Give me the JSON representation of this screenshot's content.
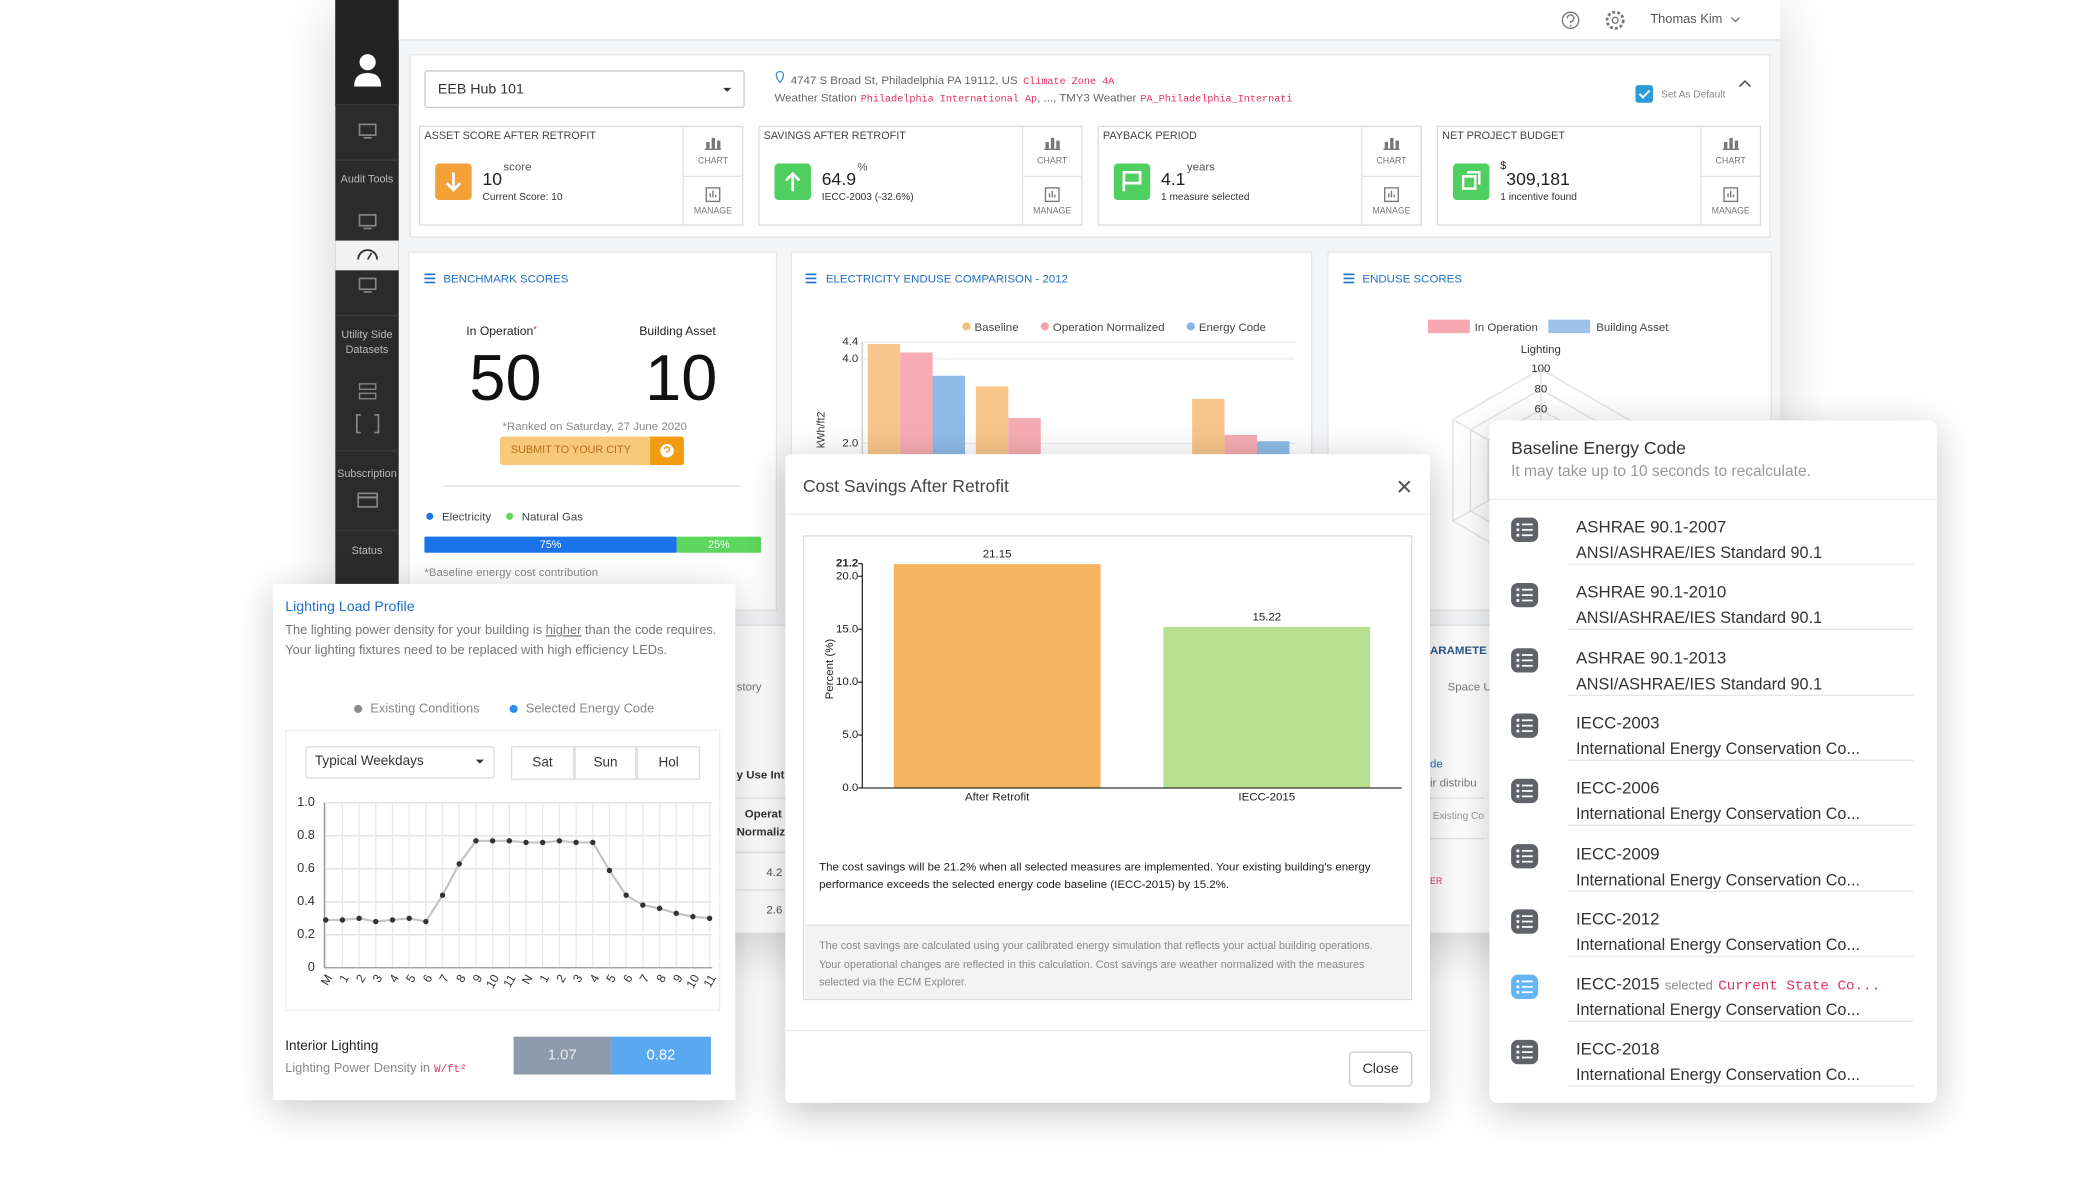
{
  "topbar": {
    "user": "Thomas Kim"
  },
  "sidebar": {
    "items": [
      "Audit Tools",
      "Utility Side Datasets",
      "Subscription",
      "Status"
    ]
  },
  "building": {
    "name": "EEB Hub 101",
    "address": "4747 S Broad St, Philadelphia PA 19112, US",
    "climate_zone": "Climate Zone 4A",
    "weather_station_label": "Weather Station",
    "weather_station": "Philadelphia International Ap",
    "weather_separator": ", ..., TMY3 Weather",
    "tmy3": "PA_Philadelphia_Internati",
    "set_default": "Set As Default"
  },
  "kpi_buttons": {
    "chart": "CHART",
    "manage": "MANAGE"
  },
  "kpis": [
    {
      "title": "ASSET SCORE AFTER RETROFIT",
      "value": 10,
      "unit": "score",
      "detail": "Current Score: 10"
    },
    {
      "title": "SAVINGS AFTER RETROFIT",
      "value": 64.9,
      "unit": "%",
      "detail": "IECC-2003 (-32.6%)"
    },
    {
      "title": "PAYBACK PERIOD",
      "value": 4.1,
      "unit": "years",
      "detail": "1 measure selected"
    },
    {
      "title": "NET PROJECT BUDGET",
      "prefix": "$",
      "value": "309,181",
      "detail": "1 incentive found"
    }
  ],
  "benchmark": {
    "title": "BENCHMARK SCORES",
    "in_operation_label": "In Operation",
    "asterisk": "*",
    "building_asset_label": "Building Asset",
    "in_operation": 50,
    "building_asset": 10,
    "ranked": "*Ranked on Saturday, 27 June 2020",
    "submit": "SUBMIT TO YOUR CITY",
    "fuel_split": {
      "xlim": [
        0,
        100
      ],
      "series": [
        {
          "name": "Electricity",
          "color": "#1a73e8",
          "value": 75,
          "value_label": "75%"
        },
        {
          "name": "Natural Gas",
          "color": "#5cd65c",
          "value": 25,
          "value_label": "25%"
        }
      ]
    },
    "footnote": "*Baseline energy cost contribution"
  },
  "electricity_chart": {
    "type": "bar",
    "title": "ELECTRICITY ENDUSE COMPARISON - 2012",
    "y_label": "kWh/ft2",
    "categories": [
      null,
      null,
      null,
      null
    ],
    "series": [
      {
        "name": "Baseline",
        "color": "#f7c07e",
        "values": [
          4.35,
          3.35,
          null,
          3.05
        ]
      },
      {
        "name": "Operation Normalized",
        "color": "#f5a3aa",
        "values": [
          4.15,
          2.6,
          null,
          2.2
        ]
      },
      {
        "name": "Energy Code",
        "color": "#82b4e6",
        "values": [
          3.6,
          null,
          null,
          2.05
        ]
      }
    ],
    "ylim": [
      0,
      4.4
    ],
    "yticks": [
      4.4,
      {
        "value": 4,
        "label": "4.0"
      },
      {
        "value": 2,
        "label": "2.0"
      }
    ],
    "grid": true
  },
  "enduse_scores": {
    "type": "radar",
    "title": "ENDUSE SCORES",
    "legend": [
      {
        "name": "In Operation",
        "color": "#f7a8b0"
      },
      {
        "name": "Building Asset",
        "color": "#9fc2e8"
      }
    ],
    "axis_label": "Lighting",
    "rlim": [
      0,
      100
    ],
    "rticks": [
      100,
      80,
      60
    ]
  },
  "background_fragments": [
    "story",
    "y Use Int",
    "Operat",
    "Normaliz",
    "4.2",
    "2.6",
    "ARAMETE",
    "Space U",
    "de",
    "ir distribu",
    "Existing Co",
    "ER"
  ],
  "lighting": {
    "title": "Lighting Load Profile",
    "description": [
      "The lighting power density for your building is ",
      "higher",
      " than the code requires. Your lighting fixtures need to be replaced with high efficiency LEDs."
    ],
    "legend": [
      {
        "name": "Existing Conditions",
        "color": "#8a8a8a"
      },
      {
        "name": "Selected Energy Code",
        "color": "#2f8cf0"
      }
    ],
    "day_type": "Typical Weekdays",
    "day_buttons": [
      "Sat",
      "Sun",
      "Hol"
    ],
    "chart": {
      "type": "line",
      "categories": [
        "M",
        "1",
        "2",
        "3",
        "4",
        "5",
        "6",
        "7",
        "8",
        "9",
        "10",
        "11",
        "N",
        "1",
        "2",
        "3",
        "4",
        "5",
        "6",
        "7",
        "8",
        "9",
        "10",
        "11"
      ],
      "values": [
        0.29,
        0.29,
        0.3,
        0.28,
        0.29,
        0.3,
        0.28,
        0.44,
        0.63,
        0.77,
        0.77,
        0.77,
        0.76,
        0.76,
        0.77,
        0.76,
        0.76,
        0.59,
        0.44,
        0.38,
        0.36,
        0.33,
        0.31,
        0.3
      ],
      "color": "#c4c4c4",
      "marker_color": "#333333",
      "ylim": [
        0,
        1
      ],
      "yticks": [
        0,
        0.2,
        0.4,
        0.6,
        0.8,
        {
          "value": 1,
          "label": "1.0"
        }
      ],
      "grid": true
    },
    "metric_label": "Interior Lighting",
    "metric_sub": "Lighting Power Density in",
    "metric_unit": "W/ft²",
    "existing": "1.07",
    "code": "0.82"
  },
  "cost_modal": {
    "title": "Cost Savings After Retrofit",
    "chart": {
      "type": "bar",
      "y_label": "Percent (%)",
      "categories": [
        "After Retrofit",
        "IECC-2015"
      ],
      "values": [
        21.15,
        15.22
      ],
      "colors": [
        "#f6b35f",
        "#b6df90"
      ],
      "ylim": [
        0,
        21.2
      ],
      "yticks": [
        {
          "value": 0,
          "label": "0.0"
        },
        {
          "value": 5,
          "label": "5.0"
        },
        {
          "value": 10,
          "label": "10.0"
        },
        {
          "value": 15,
          "label": "15.0"
        },
        {
          "value": 20,
          "label": "20.0"
        },
        21.2
      ]
    },
    "summary": "The cost savings will be 21.2% when all selected measures are implemented. Your existing building's energy performance exceeds the selected energy code baseline (IECC-2015) by 15.2%.",
    "note": "The cost savings are calculated using your calibrated energy simulation that reflects your actual building operations. Your operational changes are reflected in this calculation. Cost savings are weather normalized with the measures selected via the ECM Explorer.",
    "close": "Close"
  },
  "code_panel": {
    "title": "Baseline Energy Code",
    "subtitle": "It may take up to 10 seconds to recalculate.",
    "items": [
      {
        "name": "ASHRAE 90.1-2007",
        "desc": "ANSI/ASHRAE/IES Standard 90.1"
      },
      {
        "name": "ASHRAE 90.1-2010",
        "desc": "ANSI/ASHRAE/IES Standard 90.1"
      },
      {
        "name": "ASHRAE 90.1-2013",
        "desc": "ANSI/ASHRAE/IES Standard 90.1"
      },
      {
        "name": "IECC-2003",
        "desc": "International Energy Conservation Co..."
      },
      {
        "name": "IECC-2006",
        "desc": "International Energy Conservation Co..."
      },
      {
        "name": "IECC-2009",
        "desc": "International Energy Conservation Co..."
      },
      {
        "name": "IECC-2012",
        "desc": "International Energy Conservation Co..."
      },
      {
        "name": "IECC-2015",
        "badge": "selected",
        "state": "Current State Co...",
        "desc": "International Energy Conservation Co...",
        "selected": true
      },
      {
        "name": "IECC-2018",
        "desc": "International Energy Conservation Co..."
      }
    ]
  }
}
